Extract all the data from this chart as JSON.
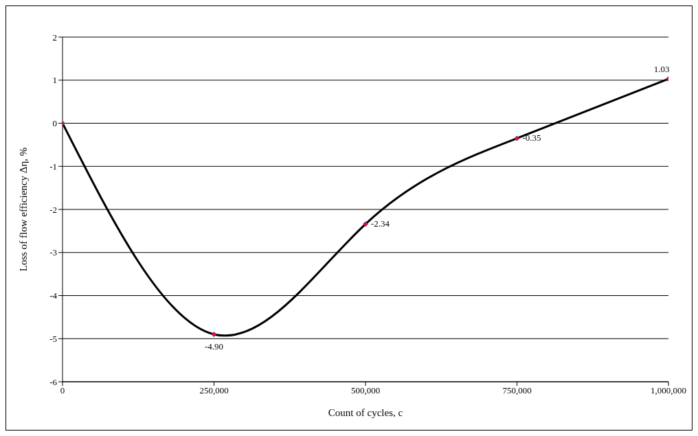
{
  "chart_data": {
    "type": "line",
    "xlabel": "Count of cycles, c",
    "ylabel": "Loss of flow efficiency Δη, %",
    "x": [
      0,
      250000,
      500000,
      750000,
      1000000
    ],
    "series": [
      {
        "color": "#000000",
        "values": [
          0,
          -4.9,
          -2.34,
          -0.35,
          1.03
        ],
        "value_labels": [
          null,
          "-4.90",
          "-2.34",
          "-0.35",
          "1.03"
        ]
      }
    ],
    "xlim": [
      0,
      1000000
    ],
    "xticks": [
      0,
      {
        "value": 250000,
        "label": "250,000"
      },
      {
        "value": 500000,
        "label": "500,000"
      },
      {
        "value": 750000,
        "label": "750,000"
      },
      {
        "value": 1000000,
        "label": "1,000,000"
      }
    ],
    "ylim": [
      -6,
      2
    ],
    "yticks": [
      -6,
      -5,
      -4,
      -3,
      -2,
      -1,
      0,
      1,
      2
    ],
    "grid": "y",
    "marker": "diamond",
    "line_style": "solid"
  }
}
